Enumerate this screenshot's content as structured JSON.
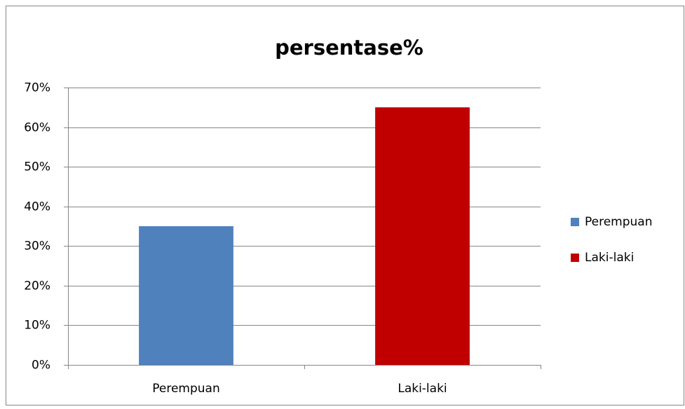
{
  "chart_data": {
    "type": "bar",
    "title": "persentase%",
    "categories": [
      "Perempuan",
      "Laki-laki"
    ],
    "values": [
      35,
      65
    ],
    "colors": [
      "#4f81bd",
      "#c00000"
    ],
    "ylim": [
      0,
      70
    ],
    "yticks": [
      {
        "value": 0,
        "label": "0%"
      },
      {
        "value": 10,
        "label": "10%"
      },
      {
        "value": 20,
        "label": "20%"
      },
      {
        "value": 30,
        "label": "30%"
      },
      {
        "value": 40,
        "label": "40%"
      },
      {
        "value": 50,
        "label": "50%"
      },
      {
        "value": 60,
        "label": "60%"
      },
      {
        "value": 70,
        "label": "70%"
      }
    ],
    "grid": true,
    "legend": "right"
  }
}
